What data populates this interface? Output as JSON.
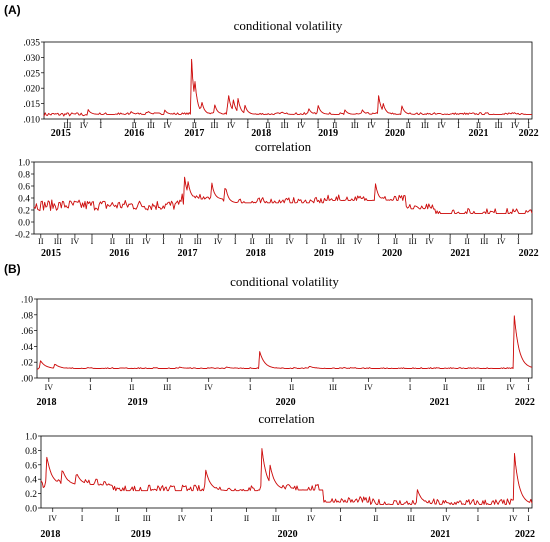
{
  "panels": {
    "A": {
      "label": "(A)"
    },
    "B": {
      "label": "(B)"
    }
  },
  "chart_data": [
    {
      "id": "A1",
      "type": "line",
      "title": "conditional volatility",
      "x_range": [
        2014.75,
        2022.05
      ],
      "ylim": [
        0.01,
        0.035
      ],
      "yticks": [
        0.01,
        0.015,
        0.02,
        0.025,
        0.03,
        0.035
      ],
      "ytick_labels": [
        ".010",
        ".015",
        ".020",
        ".025",
        ".030",
        ".035"
      ],
      "quarter_ticks": [
        {
          "x": 2015.1,
          "label": "III"
        },
        {
          "x": 2015.35,
          "label": "IV"
        },
        {
          "x": 2015.6,
          "label": "I"
        },
        {
          "x": 2016.1,
          "label": "II"
        },
        {
          "x": 2016.35,
          "label": "III"
        },
        {
          "x": 2016.6,
          "label": "IV"
        },
        {
          "x": 2017.0,
          "label": "II"
        },
        {
          "x": 2017.3,
          "label": "III"
        },
        {
          "x": 2017.55,
          "label": "IV"
        },
        {
          "x": 2017.8,
          "label": "I"
        },
        {
          "x": 2018.1,
          "label": "II"
        },
        {
          "x": 2018.35,
          "label": "III"
        },
        {
          "x": 2018.6,
          "label": "IV"
        },
        {
          "x": 2018.85,
          "label": "I"
        },
        {
          "x": 2019.1,
          "label": "II"
        },
        {
          "x": 2019.4,
          "label": "III"
        },
        {
          "x": 2019.65,
          "label": "IV"
        },
        {
          "x": 2019.9,
          "label": "I"
        },
        {
          "x": 2020.2,
          "label": "II"
        },
        {
          "x": 2020.45,
          "label": "III"
        },
        {
          "x": 2020.7,
          "label": "IV"
        },
        {
          "x": 2020.95,
          "label": "I"
        },
        {
          "x": 2021.25,
          "label": "II"
        },
        {
          "x": 2021.55,
          "label": "III"
        },
        {
          "x": 2021.8,
          "label": "IV"
        },
        {
          "x": 2022.0,
          "label": "I"
        }
      ],
      "year_labels": [
        {
          "x": 2015.0,
          "label": "2015"
        },
        {
          "x": 2016.1,
          "label": "2016"
        },
        {
          "x": 2017.0,
          "label": "2017"
        },
        {
          "x": 2018.0,
          "label": "2018"
        },
        {
          "x": 2019.0,
          "label": "2019"
        },
        {
          "x": 2020.0,
          "label": "2020"
        },
        {
          "x": 2021.25,
          "label": "2021"
        },
        {
          "x": 2022.0,
          "label": "2022"
        }
      ],
      "baseline": 0.0115,
      "noise": 0.0006,
      "spikes": [
        {
          "x": 2015.4,
          "value": 0.0135
        },
        {
          "x": 2016.05,
          "value": 0.0125
        },
        {
          "x": 2016.3,
          "value": 0.0128
        },
        {
          "x": 2016.55,
          "value": 0.0132
        },
        {
          "x": 2016.95,
          "value": 0.033
        },
        {
          "x": 2017.0,
          "value": 0.025
        },
        {
          "x": 2017.1,
          "value": 0.017
        },
        {
          "x": 2017.3,
          "value": 0.015
        },
        {
          "x": 2017.5,
          "value": 0.02
        },
        {
          "x": 2017.57,
          "value": 0.018
        },
        {
          "x": 2017.65,
          "value": 0.017
        },
        {
          "x": 2017.75,
          "value": 0.015
        },
        {
          "x": 2018.3,
          "value": 0.0125
        },
        {
          "x": 2018.7,
          "value": 0.014
        },
        {
          "x": 2018.85,
          "value": 0.0145
        },
        {
          "x": 2019.25,
          "value": 0.013
        },
        {
          "x": 2019.5,
          "value": 0.0135
        },
        {
          "x": 2019.75,
          "value": 0.0185
        },
        {
          "x": 2019.82,
          "value": 0.0155
        },
        {
          "x": 2020.1,
          "value": 0.0145
        },
        {
          "x": 2021.7,
          "value": 0.012
        }
      ]
    },
    {
      "id": "A2",
      "type": "line",
      "title": "correlation",
      "x_range": [
        2014.75,
        2022.05
      ],
      "ylim": [
        -0.2,
        1.0
      ],
      "yticks": [
        -0.2,
        0.0,
        0.2,
        0.4,
        0.6,
        0.8,
        1.0
      ],
      "ytick_labels": [
        "-0.2",
        "0.0",
        "0.2",
        "0.4",
        "0.6",
        "0.8",
        "1.0"
      ],
      "quarter_ticks": [
        {
          "x": 2014.85,
          "label": "II"
        },
        {
          "x": 2015.1,
          "label": "III"
        },
        {
          "x": 2015.35,
          "label": "IV"
        },
        {
          "x": 2015.6,
          "label": "I"
        },
        {
          "x": 2015.9,
          "label": "II"
        },
        {
          "x": 2016.15,
          "label": "III"
        },
        {
          "x": 2016.4,
          "label": "IV"
        },
        {
          "x": 2016.65,
          "label": "I"
        },
        {
          "x": 2016.9,
          "label": "II"
        },
        {
          "x": 2017.15,
          "label": "III"
        },
        {
          "x": 2017.45,
          "label": "IV"
        },
        {
          "x": 2017.7,
          "label": "I"
        },
        {
          "x": 2017.95,
          "label": "II"
        },
        {
          "x": 2018.2,
          "label": "III"
        },
        {
          "x": 2018.5,
          "label": "IV"
        },
        {
          "x": 2018.75,
          "label": "I"
        },
        {
          "x": 2019.0,
          "label": "II"
        },
        {
          "x": 2019.25,
          "label": "III"
        },
        {
          "x": 2019.5,
          "label": "IV"
        },
        {
          "x": 2019.8,
          "label": "I"
        },
        {
          "x": 2020.05,
          "label": "II"
        },
        {
          "x": 2020.3,
          "label": "III"
        },
        {
          "x": 2020.55,
          "label": "IV"
        },
        {
          "x": 2020.85,
          "label": "I"
        },
        {
          "x": 2021.1,
          "label": "II"
        },
        {
          "x": 2021.35,
          "label": "III"
        },
        {
          "x": 2021.6,
          "label": "IV"
        },
        {
          "x": 2021.85,
          "label": "I"
        }
      ],
      "year_labels": [
        {
          "x": 2015.0,
          "label": "2015"
        },
        {
          "x": 2016.0,
          "label": "2016"
        },
        {
          "x": 2017.0,
          "label": "2017"
        },
        {
          "x": 2018.0,
          "label": "2018"
        },
        {
          "x": 2019.0,
          "label": "2019"
        },
        {
          "x": 2020.0,
          "label": "2020"
        },
        {
          "x": 2021.0,
          "label": "2021"
        },
        {
          "x": 2022.0,
          "label": "2022"
        }
      ],
      "segments": [
        {
          "from": 2014.75,
          "to": 2016.9,
          "level": 0.28
        },
        {
          "from": 2016.9,
          "to": 2017.5,
          "level": 0.38
        },
        {
          "from": 2017.5,
          "to": 2019.0,
          "level": 0.32
        },
        {
          "from": 2019.0,
          "to": 2020.2,
          "level": 0.36
        },
        {
          "from": 2020.2,
          "to": 2020.6,
          "level": 0.22
        },
        {
          "from": 2020.6,
          "to": 2022.05,
          "level": 0.14
        }
      ],
      "noise": 0.09,
      "spikes": [
        {
          "x": 2016.95,
          "value": 0.82
        },
        {
          "x": 2017.0,
          "value": 0.75
        },
        {
          "x": 2017.35,
          "value": 0.7
        },
        {
          "x": 2017.55,
          "value": 0.65
        },
        {
          "x": 2019.75,
          "value": 0.68
        }
      ]
    },
    {
      "id": "B1",
      "type": "line",
      "title": "conditional volatility",
      "x_range": [
        2017.9,
        2022.08
      ],
      "ylim": [
        0.0,
        0.1
      ],
      "yticks": [
        0.0,
        0.02,
        0.04,
        0.06,
        0.08,
        0.1
      ],
      "ytick_labels": [
        ".00",
        ".02",
        ".04",
        ".06",
        ".08",
        ".10"
      ],
      "quarter_ticks": [
        {
          "x": 2018.0,
          "label": "IV"
        },
        {
          "x": 2018.35,
          "label": "I"
        },
        {
          "x": 2018.7,
          "label": "II"
        },
        {
          "x": 2019.0,
          "label": "III"
        },
        {
          "x": 2019.35,
          "label": "IV"
        },
        {
          "x": 2019.7,
          "label": "I"
        },
        {
          "x": 2020.05,
          "label": "II"
        },
        {
          "x": 2020.4,
          "label": "III"
        },
        {
          "x": 2020.7,
          "label": "IV"
        },
        {
          "x": 2021.05,
          "label": "I"
        },
        {
          "x": 2021.35,
          "label": "II"
        },
        {
          "x": 2021.65,
          "label": "III"
        },
        {
          "x": 2021.9,
          "label": "IV"
        },
        {
          "x": 2022.05,
          "label": "I"
        }
      ],
      "year_labels": [
        {
          "x": 2017.98,
          "label": "2018"
        },
        {
          "x": 2018.75,
          "label": "2019"
        },
        {
          "x": 2020.0,
          "label": "2020"
        },
        {
          "x": 2021.3,
          "label": "2021"
        },
        {
          "x": 2022.02,
          "label": "2022"
        }
      ],
      "baseline": 0.012,
      "noise": 0.0012,
      "spikes": [
        {
          "x": 2017.93,
          "value": 0.022
        },
        {
          "x": 2018.05,
          "value": 0.018
        },
        {
          "x": 2018.6,
          "value": 0.013
        },
        {
          "x": 2019.1,
          "value": 0.014
        },
        {
          "x": 2019.5,
          "value": 0.014
        },
        {
          "x": 2019.78,
          "value": 0.034
        },
        {
          "x": 2020.2,
          "value": 0.015
        },
        {
          "x": 2020.55,
          "value": 0.013
        },
        {
          "x": 2021.93,
          "value": 0.08
        }
      ]
    },
    {
      "id": "B2",
      "type": "line",
      "title": "correlation",
      "x_range": [
        2017.9,
        2022.08
      ],
      "ylim": [
        0.0,
        1.0
      ],
      "yticks": [
        0.0,
        0.2,
        0.4,
        0.6,
        0.8,
        1.0
      ],
      "ytick_labels": [
        "0.0",
        "0.2",
        "0.4",
        "0.6",
        "0.8",
        "1.0"
      ],
      "quarter_ticks": [
        {
          "x": 2018.0,
          "label": "IV"
        },
        {
          "x": 2018.25,
          "label": "I"
        },
        {
          "x": 2018.55,
          "label": "II"
        },
        {
          "x": 2018.8,
          "label": "III"
        },
        {
          "x": 2019.1,
          "label": "IV"
        },
        {
          "x": 2019.35,
          "label": "I"
        },
        {
          "x": 2019.65,
          "label": "II"
        },
        {
          "x": 2019.9,
          "label": "III"
        },
        {
          "x": 2020.2,
          "label": "IV"
        },
        {
          "x": 2020.45,
          "label": "I"
        },
        {
          "x": 2020.75,
          "label": "II"
        },
        {
          "x": 2021.05,
          "label": "III"
        },
        {
          "x": 2021.35,
          "label": "IV"
        },
        {
          "x": 2021.62,
          "label": "I"
        },
        {
          "x": 2021.92,
          "label": "IV"
        },
        {
          "x": 2022.05,
          "label": "I"
        }
      ],
      "year_labels": [
        {
          "x": 2017.98,
          "label": "2018"
        },
        {
          "x": 2018.75,
          "label": "2019"
        },
        {
          "x": 2020.0,
          "label": "2020"
        },
        {
          "x": 2021.3,
          "label": "2021"
        },
        {
          "x": 2022.02,
          "label": "2022"
        }
      ],
      "segments": [
        {
          "from": 2017.9,
          "to": 2018.5,
          "level": 0.32
        },
        {
          "from": 2018.5,
          "to": 2019.75,
          "level": 0.24
        },
        {
          "from": 2019.75,
          "to": 2020.3,
          "level": 0.25
        },
        {
          "from": 2020.3,
          "to": 2020.7,
          "level": 0.08
        },
        {
          "from": 2020.7,
          "to": 2022.08,
          "level": 0.05
        }
      ],
      "noise": 0.08,
      "spikes": [
        {
          "x": 2017.95,
          "value": 0.72
        },
        {
          "x": 2018.08,
          "value": 0.55
        },
        {
          "x": 2018.2,
          "value": 0.5
        },
        {
          "x": 2019.3,
          "value": 0.55
        },
        {
          "x": 2019.78,
          "value": 0.84
        },
        {
          "x": 2019.85,
          "value": 0.6
        },
        {
          "x": 2021.1,
          "value": 0.28
        },
        {
          "x": 2021.93,
          "value": 0.77
        }
      ]
    }
  ]
}
